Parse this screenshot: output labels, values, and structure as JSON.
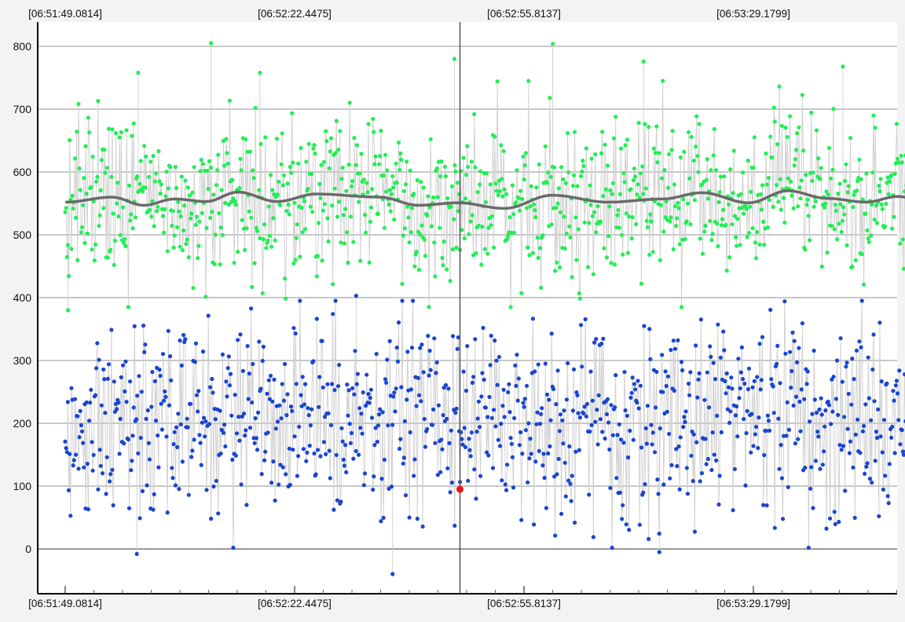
{
  "chart_data": {
    "type": "scatter",
    "title": "",
    "xlabel": "",
    "ylabel": "",
    "x_tick_labels": [
      "[06:51:49.0814]",
      "[06:52:22.4475]",
      "[06:52:55.8137]",
      "[06:53:29.1799]"
    ],
    "y_ticks": [
      0,
      100,
      200,
      300,
      400,
      500,
      600,
      700,
      800
    ],
    "ylim": [
      -60,
      830
    ],
    "grid": true,
    "cursor_time": "06:52:46.5",
    "selected_point": {
      "time": "06:52:46.5",
      "value": 95
    },
    "series": [
      {
        "color": "#22ee55",
        "kind": "points",
        "points_note": "~1000 dense samples, mean ~555, range ~375-805",
        "outliers": [
          {
            "time": "06:51:49.5",
            "value": 380
          },
          {
            "time": "06:52:17.4",
            "value": 758
          },
          {
            "time": "06:52:10.3",
            "value": 805
          },
          {
            "time": "06:51:59.7",
            "value": 758
          },
          {
            "time": "06:52:45.7",
            "value": 780
          },
          {
            "time": "06:53:00.0",
            "value": 804
          },
          {
            "time": "06:53:13.2",
            "value": 776
          },
          {
            "time": "06:53:42.2",
            "value": 768
          }
        ]
      },
      {
        "color": "#1a45d0",
        "kind": "points",
        "points_note": "~1000 dense samples, mean ~200, range ~-40-405",
        "outliers": [
          {
            "time": "06:52:36.7",
            "value": -40
          },
          {
            "time": "06:51:59.5",
            "value": -8
          },
          {
            "time": "06:53:15.5",
            "value": -5
          },
          {
            "time": "06:52:31.4",
            "value": 403
          }
        ]
      },
      {
        "color": "#6a6a6a",
        "kind": "smoothed-mean",
        "points": [
          {
            "time": "06:51:49.1",
            "value": 552
          },
          {
            "time": "06:51:55.9",
            "value": 560
          },
          {
            "time": "06:52:00.5",
            "value": 547
          },
          {
            "time": "06:52:05.0",
            "value": 557
          },
          {
            "time": "06:52:09.6",
            "value": 553
          },
          {
            "time": "06:52:14.2",
            "value": 568
          },
          {
            "time": "06:52:19.9",
            "value": 553
          },
          {
            "time": "06:52:25.6",
            "value": 565
          },
          {
            "time": "06:52:34.8",
            "value": 560
          },
          {
            "time": "06:52:40.5",
            "value": 547
          },
          {
            "time": "06:52:46.2",
            "value": 551
          },
          {
            "time": "06:52:53.0",
            "value": 542
          },
          {
            "time": "06:52:59.9",
            "value": 563
          },
          {
            "time": "06:53:08.0",
            "value": 552
          },
          {
            "time": "06:53:15.9",
            "value": 557
          },
          {
            "time": "06:53:21.7",
            "value": 567
          },
          {
            "time": "06:53:28.5",
            "value": 551
          },
          {
            "time": "06:53:34.2",
            "value": 570
          },
          {
            "time": "06:53:39.9",
            "value": 558
          },
          {
            "time": "06:53:45.6",
            "value": 552
          },
          {
            "time": "06:53:50.2",
            "value": 561
          },
          {
            "time": "06:53:56.0",
            "value": 545
          }
        ]
      }
    ]
  }
}
